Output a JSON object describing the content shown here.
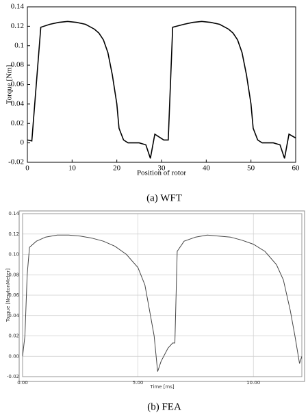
{
  "chart_data": [
    {
      "type": "line",
      "caption": "(a)  WFT",
      "x_label": "Position of rotor",
      "y_label": "Torque [Nm]",
      "x": [
        0,
        1,
        3,
        5,
        7,
        9,
        11,
        13,
        15,
        16,
        17,
        18,
        19,
        20,
        20.5,
        21.5,
        22.5,
        25,
        26.5,
        27.5,
        28.5,
        30.5,
        31.5,
        32.5,
        35,
        37,
        39,
        41,
        43,
        45,
        46,
        47,
        48,
        49,
        50,
        50.5,
        51.5,
        52.5,
        55,
        56.5,
        57.5,
        58.5,
        60
      ],
      "values": [
        0.003,
        0.002,
        0.119,
        0.122,
        0.124,
        0.125,
        0.124,
        0.122,
        0.117,
        0.113,
        0.106,
        0.093,
        0.07,
        0.04,
        0.015,
        0.003,
        0,
        0,
        -0.002,
        -0.016,
        0.009,
        0.003,
        0.003,
        0.119,
        0.122,
        0.124,
        0.125,
        0.124,
        0.122,
        0.117,
        0.113,
        0.106,
        0.093,
        0.07,
        0.04,
        0.015,
        0.003,
        0,
        0,
        -0.002,
        -0.016,
        0.009,
        0.005
      ],
      "color": "#000000",
      "xlim": [
        0,
        60
      ],
      "xticks": [
        0,
        10,
        20,
        30,
        40,
        50,
        60
      ],
      "ylim": [
        -0.02,
        0.14
      ],
      "yticks": [
        -0.02,
        0,
        0.02,
        0.04,
        0.06,
        0.08,
        0.1,
        0.12,
        0.14
      ],
      "grid": false
    },
    {
      "type": "line",
      "caption": "(b)  FEA",
      "x_label": "Time [ms]",
      "y_label": "Torque [NewtonMeter]",
      "x": [
        0,
        0.1,
        0.2,
        0.3,
        0.6,
        1,
        1.5,
        2,
        2.5,
        3,
        3.5,
        4,
        4.5,
        5,
        5.3,
        5.5,
        5.7,
        5.85,
        6,
        6.3,
        6.5,
        6.6,
        6.7,
        7,
        7.5,
        8,
        8.5,
        9,
        9.5,
        10,
        10.5,
        11,
        11.3,
        11.6,
        11.8,
        12,
        12.1
      ],
      "values": [
        0,
        0.02,
        0.08,
        0.107,
        0.113,
        0.117,
        0.119,
        0.119,
        0.118,
        0.116,
        0.113,
        0.108,
        0.1,
        0.087,
        0.07,
        0.045,
        0.02,
        -0.015,
        -0.005,
        0.008,
        0.013,
        0.013,
        0.103,
        0.113,
        0.117,
        0.119,
        0.118,
        0.117,
        0.114,
        0.11,
        0.103,
        0.09,
        0.075,
        0.045,
        0.02,
        -0.007,
        0
      ],
      "color": "#444444",
      "xlim": [
        0,
        12.1
      ],
      "xticks": [
        {
          "value": 0,
          "label": "0.00"
        },
        {
          "value": 5,
          "label": "5.00"
        },
        {
          "value": 10,
          "label": "10.00"
        }
      ],
      "ylim": [
        -0.02,
        0.14
      ],
      "yticks": [
        {
          "value": -0.02,
          "label": "-0.02"
        },
        {
          "value": 0,
          "label": "0.00"
        },
        {
          "value": 0.02,
          "label": "0.02"
        },
        {
          "value": 0.04,
          "label": "0.04"
        },
        {
          "value": 0.06,
          "label": "0.06"
        },
        {
          "value": 0.08,
          "label": "0.08"
        },
        {
          "value": 0.1,
          "label": "0.10"
        },
        {
          "value": 0.12,
          "label": "0.12"
        },
        {
          "value": 0.14,
          "label": "0.14"
        }
      ],
      "grid": true
    }
  ]
}
